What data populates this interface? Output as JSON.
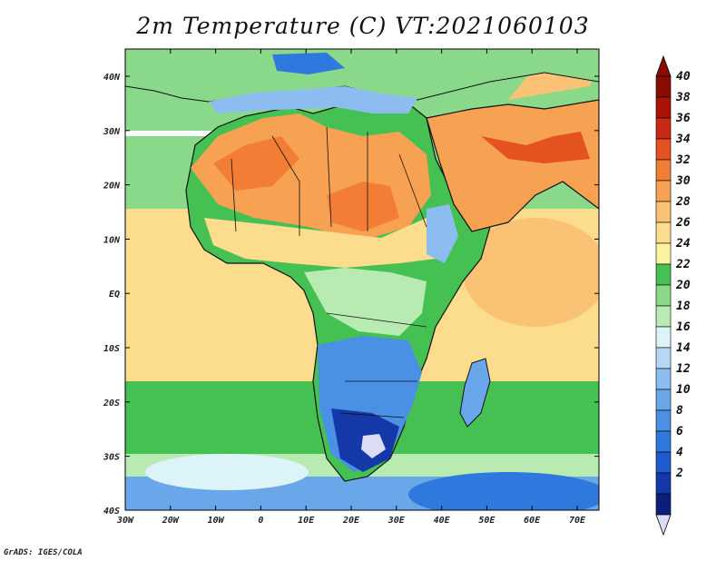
{
  "title": "2m Temperature (C) VT:2021060103",
  "credit": "GrADS: IGES/COLA",
  "map": {
    "lon_labels": [
      "30W",
      "20W",
      "10W",
      "0",
      "10E",
      "20E",
      "30E",
      "40E",
      "50E",
      "60E",
      "70E"
    ],
    "lat_labels": [
      "40N",
      "30N",
      "20N",
      "10N",
      "EQ",
      "10S",
      "20S",
      "30S",
      "40S"
    ]
  },
  "colorbar": {
    "levels": [
      "2",
      "4",
      "6",
      "8",
      "10",
      "12",
      "14",
      "16",
      "18",
      "20",
      "22",
      "24",
      "26",
      "28",
      "30",
      "32",
      "34",
      "36",
      "38",
      "40"
    ],
    "colors": [
      "#0b1f7a",
      "#1438a8",
      "#1e5bd0",
      "#2f78de",
      "#4a90e4",
      "#6aa6ea",
      "#8dbdf0",
      "#b6d8f6",
      "#dcf3f7",
      "#b8ebb2",
      "#8ad88a",
      "#45c053",
      "#fdf2a2",
      "#fcdc8d",
      "#f9c274",
      "#f6a252",
      "#f27e35",
      "#e4521f",
      "#cc2914",
      "#aa1207",
      "#8a0a04"
    ],
    "min_arrow_color": "#dcdcf6",
    "max_arrow_color": "#8a0a04"
  },
  "field_colors": {
    "ocean_north": "#8ad88a",
    "ocean_tropical": "#fcdc8d",
    "ocean_south": "#45c053",
    "ocean_far_south": "#6aa6ea",
    "sahara": "#f6a252",
    "sahel": "#fcdc8d",
    "forest": "#45c053",
    "southern_cool": "#2f78de",
    "south_cold": "#1438a8",
    "arabia": "#f6a252",
    "mediterranean": "#6aa6ea"
  }
}
